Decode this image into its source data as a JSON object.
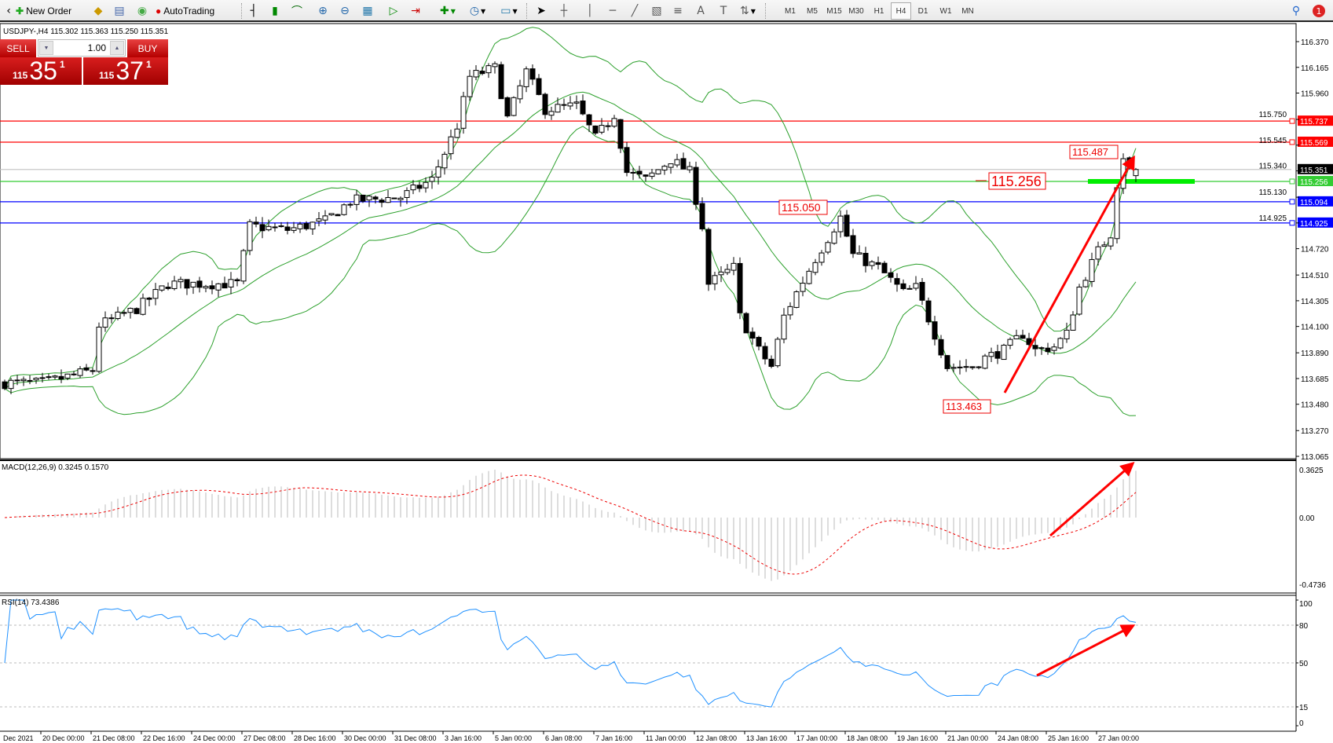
{
  "toolbar": {
    "new_order": "New Order",
    "autotrading": "AutoTrading",
    "timeframes": [
      "M1",
      "M5",
      "M15",
      "M30",
      "H1",
      "H4",
      "D1",
      "W1",
      "MN"
    ],
    "active_timeframe": "H4",
    "notification_count": "1"
  },
  "chart_header": "USDJPY-,H4  115.302 115.363 115.250 115.351",
  "trade_panel": {
    "sell_label": "SELL",
    "buy_label": "BUY",
    "volume": "1.00",
    "sell_prefix": "115",
    "sell_big": "35",
    "sell_sup": "1",
    "buy_prefix": "115",
    "buy_big": "37",
    "buy_sup": "1"
  },
  "chart_data": {
    "type": "candlestick",
    "symbol": "USDJPY-",
    "timeframe": "H4",
    "last_ohlc": {
      "open": 115.302,
      "high": 115.363,
      "low": 115.25,
      "close": 115.351
    },
    "close_path": [
      [
        0,
        113.65
      ],
      [
        6,
        113.65
      ],
      [
        14,
        113.75
      ],
      [
        15,
        114.11
      ],
      [
        21,
        114.24
      ],
      [
        26,
        114.44
      ],
      [
        30,
        114.44
      ],
      [
        37,
        114.44
      ],
      [
        39,
        114.9
      ],
      [
        45,
        114.87
      ],
      [
        51,
        114.94
      ],
      [
        55,
        115.1
      ],
      [
        63,
        115.13
      ],
      [
        68,
        115.27
      ],
      [
        72,
        115.7
      ],
      [
        74,
        116.09
      ],
      [
        78,
        116.16
      ],
      [
        80,
        115.76
      ],
      [
        83,
        116.13
      ],
      [
        86,
        115.83
      ],
      [
        91,
        115.86
      ],
      [
        94,
        115.6
      ],
      [
        97,
        115.79
      ],
      [
        99,
        115.33
      ],
      [
        102,
        115.27
      ],
      [
        106,
        115.43
      ],
      [
        109,
        115.33
      ],
      [
        111,
        114.9
      ],
      [
        112,
        114.44
      ],
      [
        116,
        114.57
      ],
      [
        117,
        114.18
      ],
      [
        120,
        113.91
      ],
      [
        122,
        113.78
      ],
      [
        124,
        114.18
      ],
      [
        126,
        114.37
      ],
      [
        129,
        114.64
      ],
      [
        133,
        114.97
      ],
      [
        135,
        114.67
      ],
      [
        139,
        114.57
      ],
      [
        143,
        114.37
      ],
      [
        145,
        114.41
      ],
      [
        148,
        114.04
      ],
      [
        150,
        113.78
      ],
      [
        154,
        113.78
      ],
      [
        156,
        113.85
      ],
      [
        159,
        113.91
      ],
      [
        162,
        114.04
      ],
      [
        164,
        113.91
      ],
      [
        167,
        113.94
      ],
      [
        169,
        114.04
      ],
      [
        171,
        114.41
      ],
      [
        174,
        114.7
      ],
      [
        176,
        114.84
      ],
      [
        177,
        115.24
      ],
      [
        178,
        115.46
      ],
      [
        179,
        115.35
      ]
    ],
    "price_axis": {
      "min": 113.065,
      "max": 116.37,
      "ticks": [
        "116.370",
        "116.165",
        "115.960",
        "115.750",
        "115.545",
        "115.340",
        "115.130",
        "114.925",
        "114.720",
        "114.510",
        "114.305",
        "114.100",
        "113.890",
        "113.685",
        "113.480",
        "113.270",
        "113.065"
      ]
    },
    "time_labels": [
      "Dec 2021",
      "20 Dec 00:00",
      "21 Dec 08:00",
      "22 Dec 16:00",
      "24 Dec 00:00",
      "27 Dec 08:00",
      "28 Dec 16:00",
      "30 Dec 00:00",
      "31 Dec 08:00",
      "3 Jan 16:00",
      "5 Jan 00:00",
      "6 Jan 08:00",
      "7 Jan 16:00",
      "11 Jan 00:00",
      "12 Jan 08:00",
      "13 Jan 16:00",
      "17 Jan 00:00",
      "18 Jan 08:00",
      "19 Jan 16:00",
      "21 Jan 00:00",
      "24 Jan 08:00",
      "25 Jan 16:00",
      "27 Jan 00:00"
    ],
    "bollinger": {
      "period": 20,
      "deviation": 2,
      "color": "#2ca02c"
    },
    "horizontal_lines": [
      {
        "price": 115.737,
        "label": "115.737",
        "color": "#ff0000"
      },
      {
        "price": 115.569,
        "label": "115.569",
        "color": "#ff0000"
      },
      {
        "price": 115.351,
        "label": "115.351",
        "color": "#000000",
        "line": "#c0c0c0"
      },
      {
        "price": 115.256,
        "label": "115.256",
        "color": "#33cc33"
      },
      {
        "price": 115.094,
        "label": "115.094",
        "color": "#0000ff"
      },
      {
        "price": 114.925,
        "label": "114.925",
        "color": "#0000ff"
      }
    ],
    "annotations": [
      "115.487",
      "115.256",
      "115.050",
      "113.463"
    ],
    "macd": {
      "label": "MACD(12,26,9) 0.3245 0.1570",
      "fast": 12,
      "slow": 26,
      "signal": 9,
      "max": 0.3625,
      "min": -0.4736,
      "ticks": [
        "0.3625",
        "0.00",
        "-0.4736"
      ]
    },
    "rsi": {
      "label": "RSI(14) 73.4386",
      "period": 14,
      "levels": [
        80,
        50,
        15
      ],
      "ticks": [
        "100",
        "80",
        "50",
        "15",
        "0"
      ],
      "color": "#1e90ff"
    }
  }
}
